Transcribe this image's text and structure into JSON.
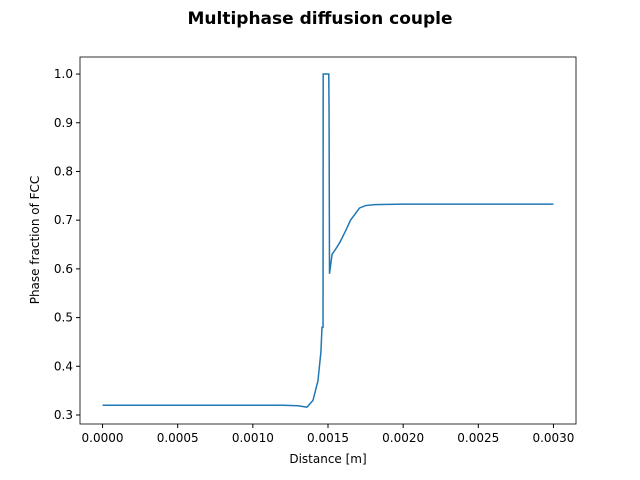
{
  "chart_data": {
    "type": "line",
    "title": "Multiphase diffusion couple",
    "xlabel": "Distance [m]",
    "ylabel": "Phase fraction of FCC",
    "x": [
      0,
      0.0005,
      0.001,
      0.0012,
      0.0013,
      0.00136,
      0.0014,
      0.001433,
      0.001453,
      0.00146,
      0.001467,
      0.001468,
      0.001473,
      0.001505,
      0.001507,
      0.00151,
      0.001527,
      0.00155,
      0.00158,
      0.00162,
      0.00165,
      0.00171,
      0.00175,
      0.00181,
      0.002,
      0.0025,
      0.003
    ],
    "series": [
      {
        "name": "FCC",
        "color": "#1f77b4",
        "values": [
          0.32,
          0.32,
          0.32,
          0.32,
          0.319,
          0.316,
          0.33,
          0.37,
          0.43,
          0.48,
          0.48,
          1.0,
          1.0,
          1.0,
          0.93,
          0.59,
          0.63,
          0.64,
          0.655,
          0.68,
          0.7,
          0.725,
          0.73,
          0.732,
          0.733,
          0.733,
          0.733
        ]
      }
    ],
    "xlim": [
      -0.00015,
      0.00315
    ],
    "ylim": [
      0.2815,
      1.035
    ],
    "xticks": [
      {
        "value": 0,
        "label": "0.0000"
      },
      {
        "value": 0.0005,
        "label": "0.0005"
      },
      {
        "value": 0.001,
        "label": "0.0010"
      },
      {
        "value": 0.0015,
        "label": "0.0015"
      },
      {
        "value": 0.002,
        "label": "0.0020"
      },
      {
        "value": 0.0025,
        "label": "0.0025"
      },
      {
        "value": 0.003,
        "label": "0.0030"
      }
    ],
    "yticks": [
      0.3,
      0.4,
      0.5,
      0.6,
      0.7,
      0.8,
      0.9,
      {
        "value": 1,
        "label": "1.0"
      }
    ],
    "grid": false
  }
}
